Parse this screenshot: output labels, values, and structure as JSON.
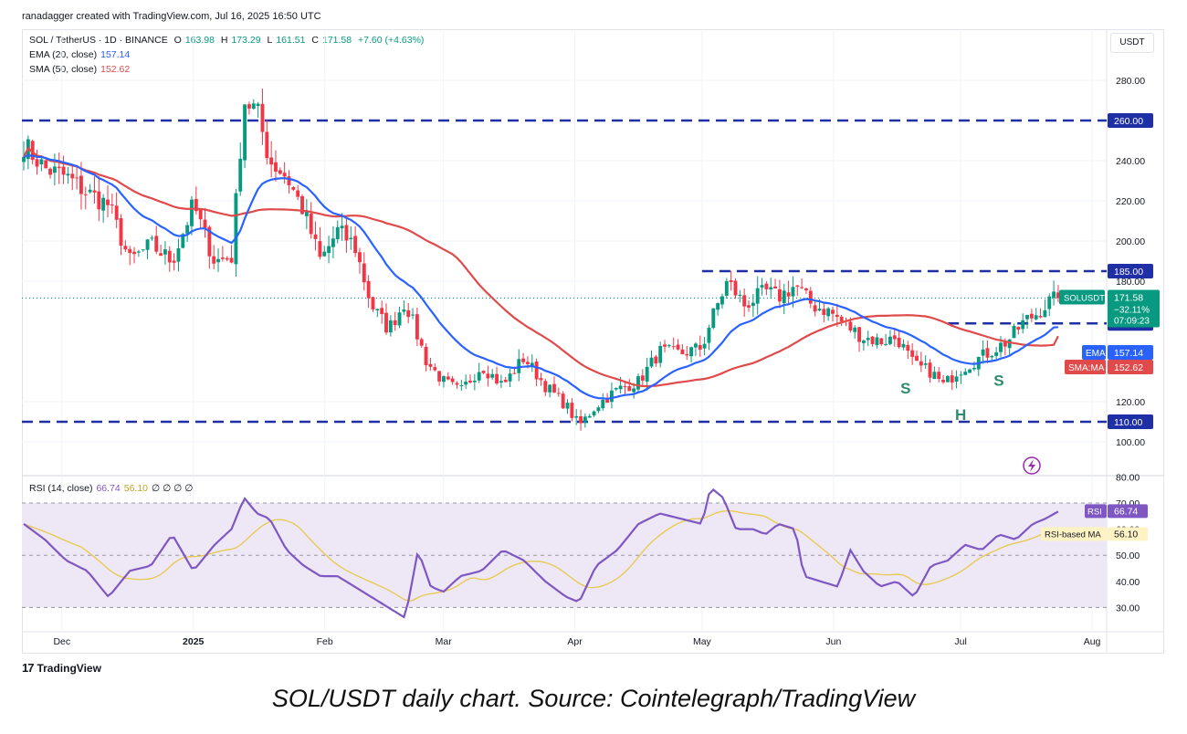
{
  "header": {
    "author_line": "ranadagger created with TradingView.com, Jul 16, 2025 16:50 UTC"
  },
  "currency": "USDT",
  "legend": {
    "symbol": "SOL / TetherUS · 1D · BINANCE",
    "o_label": "O",
    "o_val": "163.98",
    "h_label": "H",
    "h_val": "173.29",
    "l_label": "L",
    "l_val": "161.51",
    "c_label": "C",
    "c_val": "171.58",
    "change": "+7.60 (+4.63%)",
    "ema_label": "EMA (20, close)",
    "ema_val": "157.14",
    "sma_label": "SMA (50, close)",
    "sma_val": "152.62",
    "rsi_label": "RSI (14, close)",
    "rsi_val": "66.74",
    "rsima_val": "56.10",
    "rsi_extra": "∅ ∅ ∅ ∅"
  },
  "footer": {
    "brand": "TradingView",
    "mark": "17"
  },
  "caption": "SOL/USDT daily chart. Source: Cointelegraph/TradingView",
  "colors": {
    "up": "#089981",
    "down": "#f23645",
    "ema": "#2962ff",
    "sma": "#e04a4a",
    "level": "#1f2fa6",
    "rsi": "#7e57c2",
    "rsima": "#e8c94a",
    "rsi_band": "#ede7f6",
    "grid": "#f0f3fa",
    "annotation": "#2e8b6e"
  },
  "chart_data": {
    "type": "candlestick",
    "symbol": "SOLUSDT",
    "interval": "1D",
    "y_range": [
      90,
      300
    ],
    "y_ticks": [
      "280.00",
      "240.00",
      "220.00",
      "200.00",
      "180.00",
      "120.00",
      "100.00"
    ],
    "x_ticks": [
      "Dec",
      "2025",
      "Feb",
      "Mar",
      "Apr",
      "May",
      "Jun",
      "Jul",
      "Aug"
    ],
    "x_tick_index": [
      9,
      40,
      71,
      99,
      130,
      160,
      191,
      221,
      252
    ],
    "grid": true,
    "levels": [
      {
        "value": 260,
        "label": "260.00",
        "color": "#1f2fa6"
      },
      {
        "value": 185,
        "label": "185.00",
        "color": "#1f2fa6"
      },
      {
        "value": 159,
        "label": "159.00",
        "color": "#1f2fa6"
      },
      {
        "value": 110,
        "label": "110.00",
        "color": "#1f2fa6"
      }
    ],
    "price_tag": {
      "symbol": "SOLUSDT",
      "value": "171.58",
      "change": "−32.11%",
      "countdown": "07:09:23"
    },
    "ema_tag": {
      "label": "EMA",
      "value": "157.14"
    },
    "sma_tag": {
      "label": "SMA:MA",
      "value": "152.62"
    },
    "annotations": [
      {
        "text": "S",
        "x_index": 208,
        "y": 124
      },
      {
        "text": "H",
        "x_index": 221,
        "y": 111
      },
      {
        "text": "S",
        "x_index": 230,
        "y": 128
      }
    ],
    "candle_count": 235,
    "close_anchors": [
      [
        0,
        248
      ],
      [
        5,
        236
      ],
      [
        10,
        232
      ],
      [
        15,
        224
      ],
      [
        20,
        218
      ],
      [
        25,
        190
      ],
      [
        30,
        198
      ],
      [
        35,
        190
      ],
      [
        40,
        218
      ],
      [
        45,
        190
      ],
      [
        49,
        192
      ],
      [
        52,
        270
      ],
      [
        55,
        265
      ],
      [
        58,
        240
      ],
      [
        62,
        232
      ],
      [
        66,
        215
      ],
      [
        70,
        190
      ],
      [
        74,
        205
      ],
      [
        78,
        198
      ],
      [
        82,
        168
      ],
      [
        86,
        156
      ],
      [
        90,
        170
      ],
      [
        95,
        140
      ],
      [
        99,
        130
      ],
      [
        103,
        125
      ],
      [
        108,
        138
      ],
      [
        113,
        128
      ],
      [
        118,
        142
      ],
      [
        123,
        128
      ],
      [
        128,
        118
      ],
      [
        131,
        108
      ],
      [
        135,
        118
      ],
      [
        140,
        126
      ],
      [
        145,
        130
      ],
      [
        150,
        145
      ],
      [
        155,
        144
      ],
      [
        160,
        147
      ],
      [
        162,
        160
      ],
      [
        166,
        180
      ],
      [
        170,
        168
      ],
      [
        175,
        175
      ],
      [
        178,
        172
      ],
      [
        182,
        178
      ],
      [
        186,
        168
      ],
      [
        190,
        165
      ],
      [
        194,
        158
      ],
      [
        198,
        152
      ],
      [
        202,
        150
      ],
      [
        206,
        152
      ],
      [
        210,
        138
      ],
      [
        214,
        135
      ],
      [
        217,
        128
      ],
      [
        220,
        135
      ],
      [
        224,
        140
      ],
      [
        228,
        145
      ],
      [
        232,
        150
      ],
      [
        236,
        160
      ],
      [
        239,
        164
      ],
      [
        242,
        170
      ],
      [
        244,
        171.58
      ]
    ],
    "ema": {
      "name": "EMA (20, close)",
      "last": 157.14
    },
    "sma": {
      "name": "SMA (50, close)",
      "last": 152.62
    },
    "rsi": {
      "name": "RSI (14, close)",
      "last": 66.74,
      "ma_name": "RSI-based MA",
      "ma_last": 56.1,
      "range": [
        20,
        80
      ],
      "y_ticks": [
        "80.00",
        "70.00",
        "60.00",
        "50.00",
        "40.00",
        "30.00"
      ],
      "anchors": [
        [
          0,
          62
        ],
        [
          5,
          56
        ],
        [
          10,
          48
        ],
        [
          15,
          44
        ],
        [
          20,
          34
        ],
        [
          25,
          44
        ],
        [
          30,
          46
        ],
        [
          35,
          58
        ],
        [
          40,
          44
        ],
        [
          45,
          54
        ],
        [
          49,
          60
        ],
        [
          52,
          72
        ],
        [
          55,
          66
        ],
        [
          58,
          64
        ],
        [
          62,
          52
        ],
        [
          66,
          46
        ],
        [
          70,
          42
        ],
        [
          74,
          42
        ],
        [
          78,
          38
        ],
        [
          82,
          34
        ],
        [
          86,
          30
        ],
        [
          90,
          26
        ],
        [
          93,
          52
        ],
        [
          96,
          38
        ],
        [
          99,
          36
        ],
        [
          103,
          42
        ],
        [
          108,
          44
        ],
        [
          113,
          52
        ],
        [
          118,
          48
        ],
        [
          123,
          40
        ],
        [
          128,
          34
        ],
        [
          131,
          32
        ],
        [
          135,
          46
        ],
        [
          140,
          52
        ],
        [
          145,
          62
        ],
        [
          150,
          66
        ],
        [
          155,
          64
        ],
        [
          160,
          62
        ],
        [
          162,
          76
        ],
        [
          165,
          72
        ],
        [
          168,
          60
        ],
        [
          172,
          60
        ],
        [
          175,
          58
        ],
        [
          178,
          62
        ],
        [
          182,
          60
        ],
        [
          184,
          42
        ],
        [
          188,
          40
        ],
        [
          192,
          38
        ],
        [
          195,
          52
        ],
        [
          198,
          44
        ],
        [
          202,
          38
        ],
        [
          206,
          40
        ],
        [
          210,
          34
        ],
        [
          214,
          46
        ],
        [
          218,
          48
        ],
        [
          222,
          54
        ],
        [
          226,
          52
        ],
        [
          230,
          58
        ],
        [
          234,
          56
        ],
        [
          238,
          62
        ],
        [
          241,
          64
        ],
        [
          244,
          66.74
        ]
      ]
    }
  }
}
